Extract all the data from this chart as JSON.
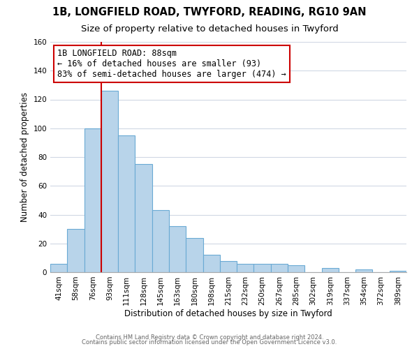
{
  "title": "1B, LONGFIELD ROAD, TWYFORD, READING, RG10 9AN",
  "subtitle": "Size of property relative to detached houses in Twyford",
  "xlabel": "Distribution of detached houses by size in Twyford",
  "ylabel": "Number of detached properties",
  "bin_labels": [
    "41sqm",
    "58sqm",
    "76sqm",
    "93sqm",
    "111sqm",
    "128sqm",
    "145sqm",
    "163sqm",
    "180sqm",
    "198sqm",
    "215sqm",
    "232sqm",
    "250sqm",
    "267sqm",
    "285sqm",
    "302sqm",
    "319sqm",
    "337sqm",
    "354sqm",
    "372sqm",
    "389sqm"
  ],
  "bar_heights": [
    6,
    30,
    100,
    126,
    95,
    75,
    43,
    32,
    24,
    12,
    8,
    6,
    6,
    6,
    5,
    0,
    3,
    0,
    2,
    0,
    1
  ],
  "bar_color": "#b8d4ea",
  "bar_edge_color": "#6aaad4",
  "vline_color": "#cc0000",
  "vline_x_index": 3,
  "ylim": [
    0,
    160
  ],
  "yticks": [
    0,
    20,
    40,
    60,
    80,
    100,
    120,
    140,
    160
  ],
  "annotation_line0": "1B LONGFIELD ROAD: 88sqm",
  "annotation_line1": "← 16% of detached houses are smaller (93)",
  "annotation_line2": "83% of semi-detached houses are larger (474) →",
  "annotation_box_facecolor": "#ffffff",
  "annotation_box_edgecolor": "#cc0000",
  "footer_line1": "Contains HM Land Registry data © Crown copyright and database right 2024.",
  "footer_line2": "Contains public sector information licensed under the Open Government Licence v3.0.",
  "title_fontsize": 10.5,
  "subtitle_fontsize": 9.5,
  "axis_fontsize": 8.5,
  "tick_fontsize": 7.5,
  "annotation_fontsize": 8.5,
  "footer_fontsize": 6.0,
  "background_color": "#ffffff",
  "grid_color": "#d0d8e4",
  "spine_color": "#aaaaaa"
}
